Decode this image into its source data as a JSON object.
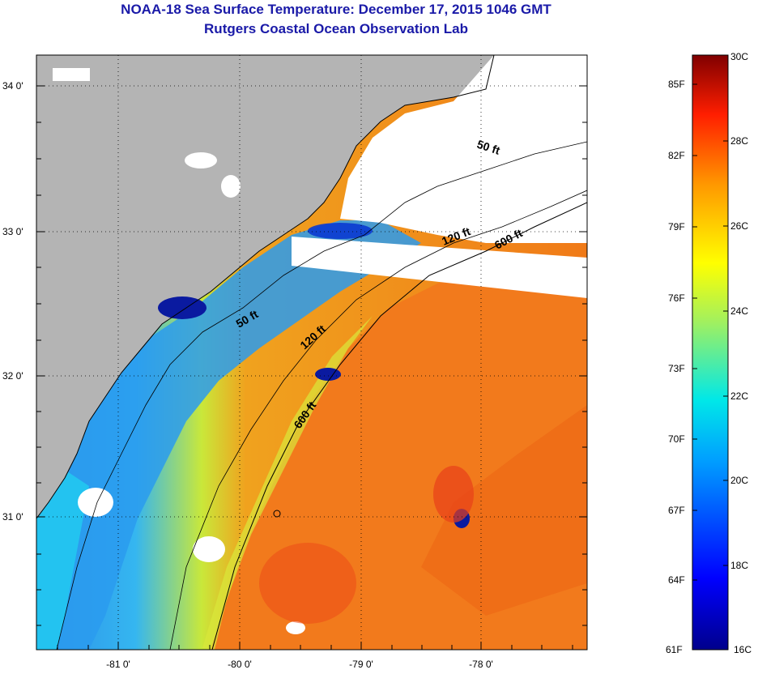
{
  "title": {
    "line1": "NOAA-18 Sea Surface Temperature:  December 17, 2015 1046 GMT",
    "line2": "Rutgers Coastal Ocean Observation Lab"
  },
  "map": {
    "lon_labels": [
      "-81 0'",
      "-80 0'",
      "-79 0'",
      "-78 0'"
    ],
    "lat_labels": [
      "34 0'",
      "33 0'",
      "32 0'",
      "31 0'"
    ],
    "contour_labels": [
      "50 ft",
      "120 ft",
      "600 ft",
      "50 ft",
      "120 ft",
      "600 ft"
    ]
  },
  "colorbar": {
    "fahrenheit_labels": [
      "85F",
      "82F",
      "79F",
      "76F",
      "73F",
      "70F",
      "67F",
      "64F",
      "61F"
    ],
    "celsius_labels": [
      "30C",
      "28C",
      "26C",
      "24C",
      "22C",
      "20C",
      "18C",
      "16C"
    ],
    "range_c": [
      16,
      30
    ]
  },
  "colors": {
    "land": "#b4b4b4",
    "cloud": "#ffffff",
    "title": "#1a1aa8"
  }
}
